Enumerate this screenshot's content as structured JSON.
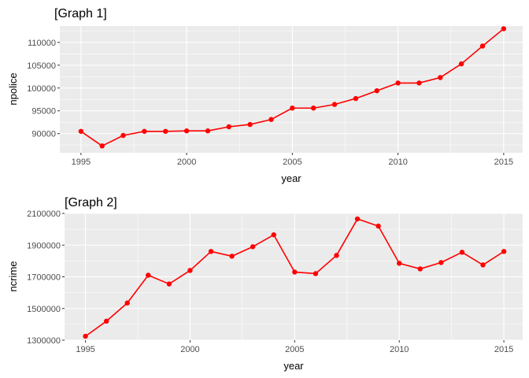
{
  "chart_data": [
    {
      "type": "line",
      "title": "[Graph 1]",
      "xlabel": "year",
      "ylabel": "npolice",
      "xlim": [
        1994.0,
        2015.9
      ],
      "ylim": [
        85800,
        113600
      ],
      "x_ticks": [
        1995,
        2000,
        2005,
        2010,
        2015
      ],
      "x_tick_labels": [
        "1995",
        "2000",
        "2005",
        "2010",
        "2015"
      ],
      "y_ticks": [
        90000,
        95000,
        100000,
        105000,
        110000
      ],
      "y_tick_labels": [
        "90000",
        "95000",
        "100000",
        "105000",
        "110000"
      ],
      "grid": true,
      "series": [
        {
          "color": "#ff0000",
          "x": [
            1995,
            1996,
            1997,
            1998,
            1999,
            2000,
            2001,
            2002,
            2003,
            2004,
            2005,
            2006,
            2007,
            2008,
            2009,
            2010,
            2011,
            2012,
            2013,
            2014,
            2015
          ],
          "values": [
            90500,
            87300,
            89600,
            90500,
            90500,
            90600,
            90600,
            91500,
            92000,
            93100,
            95600,
            95600,
            96400,
            97700,
            99400,
            101100,
            101100,
            102300,
            105300,
            109200,
            113000
          ]
        }
      ]
    },
    {
      "type": "line",
      "title": "[Graph 2]",
      "xlabel": "year",
      "ylabel": "ncrime",
      "xlim": [
        1994.0,
        2015.9
      ],
      "ylim": [
        1300000,
        2100000
      ],
      "x_ticks": [
        1995,
        2000,
        2005,
        2010,
        2015
      ],
      "x_tick_labels": [
        "1995",
        "2000",
        "2005",
        "2010",
        "2015"
      ],
      "y_ticks": [
        1300000,
        1500000,
        1700000,
        1900000,
        2100000
      ],
      "y_tick_labels": [
        "1300000",
        "1500000",
        "1700000",
        "1900000",
        "2100000"
      ],
      "grid": true,
      "series": [
        {
          "color": "#ff0000",
          "x": [
            1995,
            1996,
            1997,
            1998,
            1999,
            2000,
            2001,
            2002,
            2003,
            2004,
            2005,
            2006,
            2007,
            2008,
            2009,
            2010,
            2011,
            2012,
            2013,
            2014,
            2015
          ],
          "values": [
            1325000,
            1420000,
            1535000,
            1710000,
            1655000,
            1740000,
            1860000,
            1830000,
            1890000,
            1965000,
            1730000,
            1720000,
            1835000,
            2065000,
            2020000,
            1785000,
            1750000,
            1790000,
            1855000,
            1775000,
            1860000
          ]
        }
      ]
    }
  ]
}
